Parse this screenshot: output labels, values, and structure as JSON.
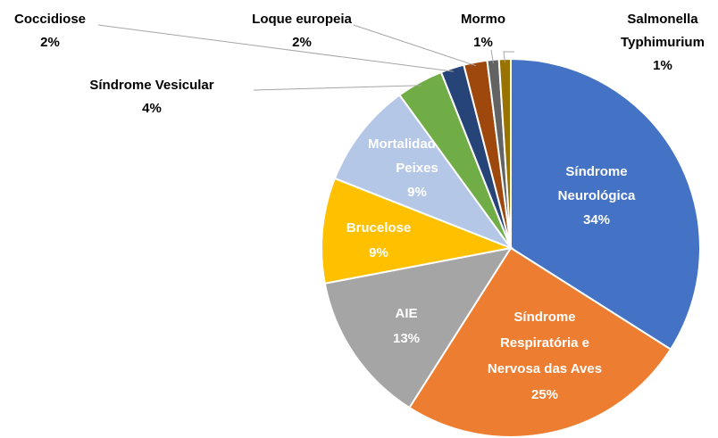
{
  "chart_data": {
    "type": "pie",
    "categories": [
      "Síndrome Neurológica",
      "Síndrome Respiratória e Nervosa das Aves",
      "AIE",
      "Brucelose",
      "Mortalidade em Peixes",
      "Síndrome Vesicular",
      "Coccidiose",
      "Loque europeia",
      "Mormo",
      "Salmonella Typhimurium"
    ],
    "values": [
      34,
      25,
      13,
      9,
      9,
      4,
      2,
      2,
      1,
      1
    ],
    "value_labels": [
      "34%",
      "25%",
      "13%",
      "9%",
      "9%",
      "4%",
      "2%",
      "2%",
      "1%",
      "1%"
    ],
    "colors": [
      "#4472c4",
      "#ed7d31",
      "#a5a5a5",
      "#ffc000",
      "#b4c7e7",
      "#70ad47",
      "#264478",
      "#9e480e",
      "#636363",
      "#997300"
    ]
  }
}
